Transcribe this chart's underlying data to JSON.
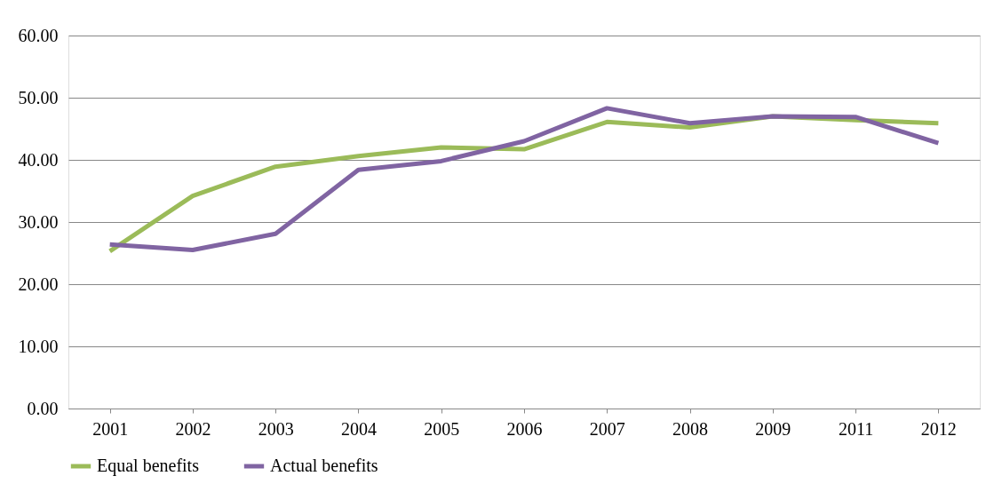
{
  "chart_data": {
    "type": "line",
    "categories": [
      "2001",
      "2002",
      "2003",
      "2004",
      "2005",
      "2006",
      "2007",
      "2008",
      "2009",
      "2011",
      "2012"
    ],
    "series": [
      {
        "name": "Equal benefits",
        "color": "#9bbb59",
        "values": [
          25.3,
          34.2,
          38.9,
          40.6,
          42.0,
          41.7,
          46.1,
          45.2,
          47.0,
          46.4,
          45.9
        ]
      },
      {
        "name": "Actual benefits",
        "color": "#8064a2",
        "values": [
          26.4,
          25.5,
          28.1,
          38.4,
          39.8,
          43.0,
          48.3,
          45.9,
          47.0,
          46.9,
          42.7
        ]
      }
    ],
    "ylim": [
      0,
      60
    ],
    "yticks": [
      {
        "value": 0,
        "label": "0.00"
      },
      {
        "value": 10,
        "label": "10.00"
      },
      {
        "value": 20,
        "label": "20.00"
      },
      {
        "value": 30,
        "label": "30.00"
      },
      {
        "value": 40,
        "label": "40.00"
      },
      {
        "value": 50,
        "label": "50.00"
      },
      {
        "value": 60,
        "label": "60.00"
      }
    ],
    "grid": "y",
    "legend": "bottom"
  }
}
